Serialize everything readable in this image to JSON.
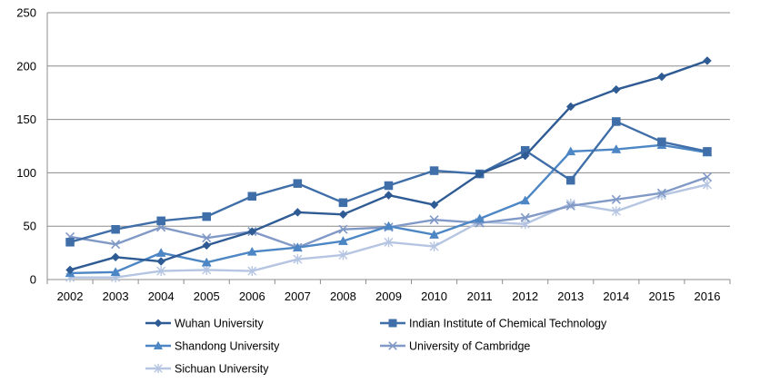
{
  "chart_data": {
    "type": "line",
    "title": "",
    "xlabel": "",
    "ylabel": "",
    "ylim": [
      0,
      250
    ],
    "yticks": [
      0,
      50,
      100,
      150,
      200,
      250
    ],
    "grid": "horizontal",
    "legend_position": "bottom",
    "categories": [
      "2002",
      "2003",
      "2004",
      "2005",
      "2006",
      "2007",
      "2008",
      "2009",
      "2010",
      "2011",
      "2012",
      "2013",
      "2014",
      "2015",
      "2016"
    ],
    "series": [
      {
        "name": "Wuhan University",
        "color": "#2f5b94",
        "marker": "diamond",
        "values": [
          9,
          21,
          17,
          32,
          45,
          63,
          61,
          79,
          70,
          99,
          116,
          162,
          178,
          190,
          205
        ]
      },
      {
        "name": "Indian Institute of Chemical Technology",
        "color": "#3f6ea8",
        "marker": "square",
        "values": [
          35,
          47,
          55,
          59,
          78,
          90,
          72,
          88,
          102,
          99,
          121,
          93,
          148,
          129,
          120
        ]
      },
      {
        "name": "Shandong University",
        "color": "#4d86c4",
        "marker": "triangle",
        "values": [
          6,
          7,
          25,
          16,
          26,
          30,
          36,
          50,
          42,
          57,
          74,
          120,
          122,
          126,
          119
        ]
      },
      {
        "name": "University of Cambridge",
        "color": "#8099c6",
        "marker": "x",
        "values": [
          40,
          33,
          49,
          39,
          45,
          30,
          47,
          49,
          56,
          53,
          58,
          69,
          75,
          81,
          96
        ]
      },
      {
        "name": "Sichuan University",
        "color": "#b5c5e2",
        "marker": "star",
        "values": [
          2,
          2,
          8,
          9,
          8,
          19,
          23,
          35,
          31,
          54,
          52,
          71,
          64,
          79,
          89
        ]
      }
    ]
  }
}
